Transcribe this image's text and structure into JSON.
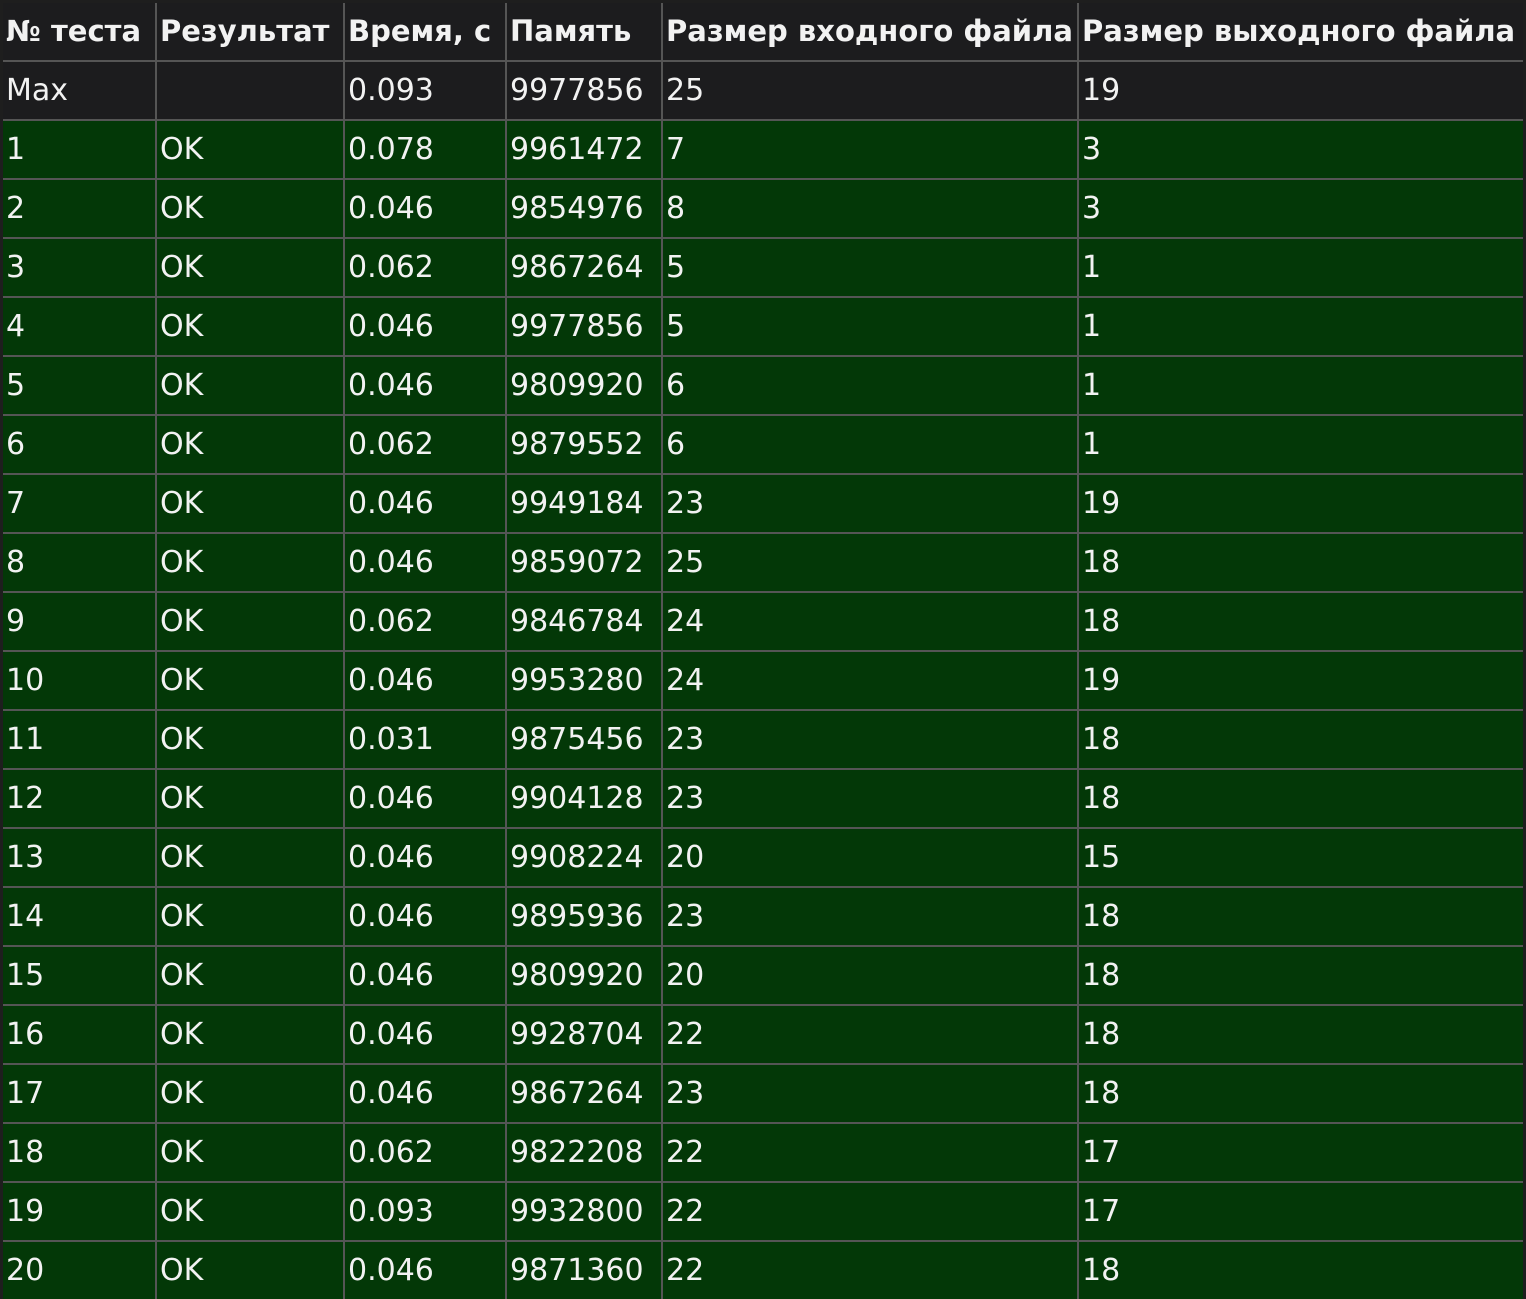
{
  "colors": {
    "background": "#1c1c1e",
    "ok_row": "#033807",
    "grid": "#555555",
    "text": "#f2f2f2"
  },
  "table": {
    "headers": [
      "№ теста",
      "Результат",
      "Время, с",
      "Память",
      "Размер входного файла",
      "Размер выходного файла"
    ],
    "max_row": [
      "Max",
      "",
      "0.093",
      "9977856",
      "25",
      "19"
    ],
    "rows": [
      [
        "1",
        "OK",
        "0.078",
        "9961472",
        "7",
        "3"
      ],
      [
        "2",
        "OK",
        "0.046",
        "9854976",
        "8",
        "3"
      ],
      [
        "3",
        "OK",
        "0.062",
        "9867264",
        "5",
        "1"
      ],
      [
        "4",
        "OK",
        "0.046",
        "9977856",
        "5",
        "1"
      ],
      [
        "5",
        "OK",
        "0.046",
        "9809920",
        "6",
        "1"
      ],
      [
        "6",
        "OK",
        "0.062",
        "9879552",
        "6",
        "1"
      ],
      [
        "7",
        "OK",
        "0.046",
        "9949184",
        "23",
        "19"
      ],
      [
        "8",
        "OK",
        "0.046",
        "9859072",
        "25",
        "18"
      ],
      [
        "9",
        "OK",
        "0.062",
        "9846784",
        "24",
        "18"
      ],
      [
        "10",
        "OK",
        "0.046",
        "9953280",
        "24",
        "19"
      ],
      [
        "11",
        "OK",
        "0.031",
        "9875456",
        "23",
        "18"
      ],
      [
        "12",
        "OK",
        "0.046",
        "9904128",
        "23",
        "18"
      ],
      [
        "13",
        "OK",
        "0.046",
        "9908224",
        "20",
        "15"
      ],
      [
        "14",
        "OK",
        "0.046",
        "9895936",
        "23",
        "18"
      ],
      [
        "15",
        "OK",
        "0.046",
        "9809920",
        "20",
        "18"
      ],
      [
        "16",
        "OK",
        "0.046",
        "9928704",
        "22",
        "18"
      ],
      [
        "17",
        "OK",
        "0.046",
        "9867264",
        "23",
        "18"
      ],
      [
        "18",
        "OK",
        "0.062",
        "9822208",
        "22",
        "17"
      ],
      [
        "19",
        "OK",
        "0.093",
        "9932800",
        "22",
        "17"
      ],
      [
        "20",
        "OK",
        "0.046",
        "9871360",
        "22",
        "18"
      ]
    ]
  }
}
